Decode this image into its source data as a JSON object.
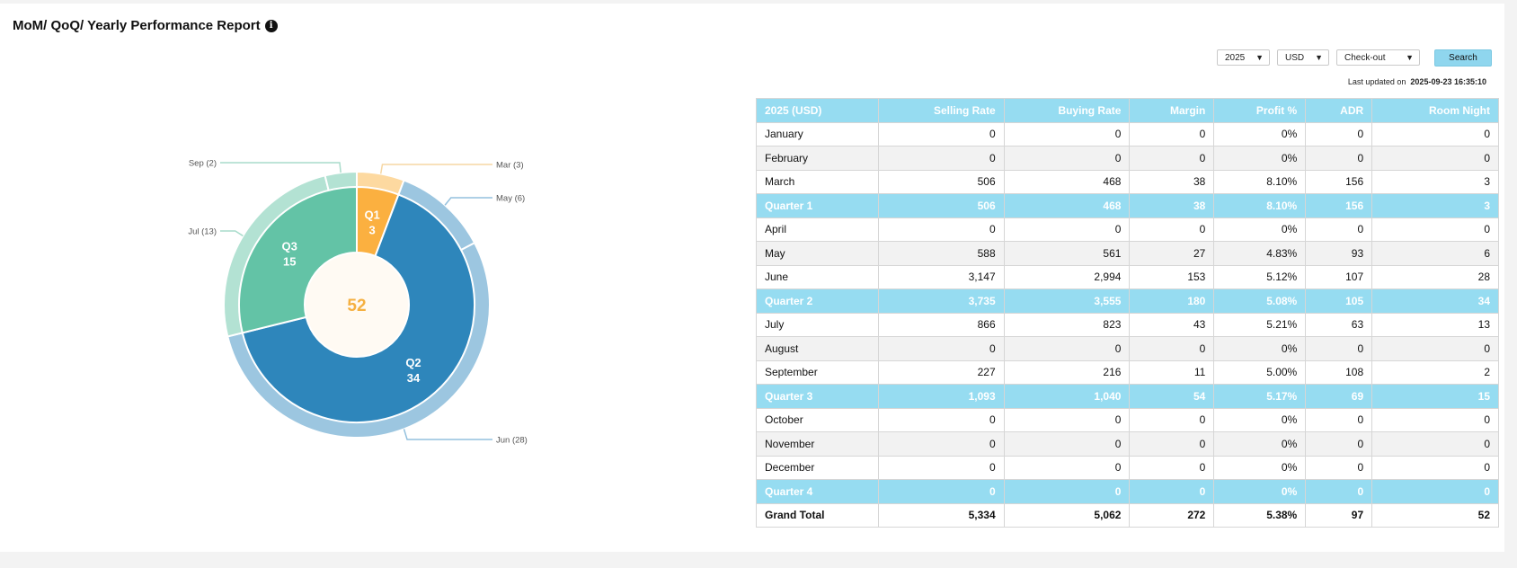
{
  "header": {
    "title": "MoM/ QoQ/ Yearly Performance Report",
    "info_glyph": "i"
  },
  "filters": {
    "year": "2025",
    "currency": "USD",
    "date_type": "Check-out",
    "search_label": "Search"
  },
  "last_updated": {
    "label": "Last updated on",
    "value": "2025-09-23 16:35:10"
  },
  "colors": {
    "q1": "#fbb040",
    "q2": "#2e86bb",
    "q3": "#63c3a6",
    "header": "#96dcf1",
    "center_text": "#f5b041"
  },
  "chart_data": {
    "type": "pie",
    "center_total": "52",
    "inner": [
      {
        "label": "Q1",
        "value": 3
      },
      {
        "label": "Q2",
        "value": 34
      },
      {
        "label": "Q3",
        "value": 15
      },
      {
        "label": "Q4",
        "value": 0
      }
    ],
    "outer": [
      {
        "label": "Jan",
        "value": 0,
        "quarter": "Q1"
      },
      {
        "label": "Feb",
        "value": 0,
        "quarter": "Q1"
      },
      {
        "label": "Mar",
        "value": 3,
        "quarter": "Q1"
      },
      {
        "label": "Apr",
        "value": 0,
        "quarter": "Q2"
      },
      {
        "label": "May",
        "value": 6,
        "quarter": "Q2"
      },
      {
        "label": "Jun",
        "value": 28,
        "quarter": "Q2"
      },
      {
        "label": "Jul",
        "value": 13,
        "quarter": "Q3"
      },
      {
        "label": "Aug",
        "value": 0,
        "quarter": "Q3"
      },
      {
        "label": "Sep",
        "value": 2,
        "quarter": "Q3"
      },
      {
        "label": "Oct",
        "value": 0,
        "quarter": "Q4"
      },
      {
        "label": "Nov",
        "value": 0,
        "quarter": "Q4"
      },
      {
        "label": "Dec",
        "value": 0,
        "quarter": "Q4"
      }
    ],
    "callouts": [
      "Sep (2)",
      "Jul (13)",
      "Mar (3)",
      "May (6)",
      "Jun (28)"
    ]
  },
  "table": {
    "headers": [
      "2025 (USD)",
      "Selling Rate",
      "Buying Rate",
      "Margin",
      "Profit %",
      "ADR",
      "Room Night"
    ],
    "rows": [
      {
        "type": "month",
        "cells": [
          "January",
          "0",
          "0",
          "0",
          "0%",
          "0",
          "0"
        ]
      },
      {
        "type": "month",
        "cells": [
          "February",
          "0",
          "0",
          "0",
          "0%",
          "0",
          "0"
        ]
      },
      {
        "type": "month",
        "cells": [
          "March",
          "506",
          "468",
          "38",
          "8.10%",
          "156",
          "3"
        ]
      },
      {
        "type": "quarter",
        "cells": [
          "Quarter 1",
          "506",
          "468",
          "38",
          "8.10%",
          "156",
          "3"
        ]
      },
      {
        "type": "month",
        "cells": [
          "April",
          "0",
          "0",
          "0",
          "0%",
          "0",
          "0"
        ]
      },
      {
        "type": "month",
        "cells": [
          "May",
          "588",
          "561",
          "27",
          "4.83%",
          "93",
          "6"
        ]
      },
      {
        "type": "month",
        "cells": [
          "June",
          "3,147",
          "2,994",
          "153",
          "5.12%",
          "107",
          "28"
        ]
      },
      {
        "type": "quarter",
        "cells": [
          "Quarter 2",
          "3,735",
          "3,555",
          "180",
          "5.08%",
          "105",
          "34"
        ]
      },
      {
        "type": "month",
        "cells": [
          "July",
          "866",
          "823",
          "43",
          "5.21%",
          "63",
          "13"
        ]
      },
      {
        "type": "month",
        "cells": [
          "August",
          "0",
          "0",
          "0",
          "0%",
          "0",
          "0"
        ]
      },
      {
        "type": "month",
        "cells": [
          "September",
          "227",
          "216",
          "11",
          "5.00%",
          "108",
          "2"
        ]
      },
      {
        "type": "quarter",
        "cells": [
          "Quarter 3",
          "1,093",
          "1,040",
          "54",
          "5.17%",
          "69",
          "15"
        ]
      },
      {
        "type": "month",
        "cells": [
          "October",
          "0",
          "0",
          "0",
          "0%",
          "0",
          "0"
        ]
      },
      {
        "type": "month",
        "cells": [
          "November",
          "0",
          "0",
          "0",
          "0%",
          "0",
          "0"
        ]
      },
      {
        "type": "month",
        "cells": [
          "December",
          "0",
          "0",
          "0",
          "0%",
          "0",
          "0"
        ]
      },
      {
        "type": "quarter",
        "cells": [
          "Quarter 4",
          "0",
          "0",
          "0",
          "0%",
          "0",
          "0"
        ]
      },
      {
        "type": "total",
        "cells": [
          "Grand Total",
          "5,334",
          "5,062",
          "272",
          "5.38%",
          "97",
          "52"
        ]
      }
    ]
  }
}
